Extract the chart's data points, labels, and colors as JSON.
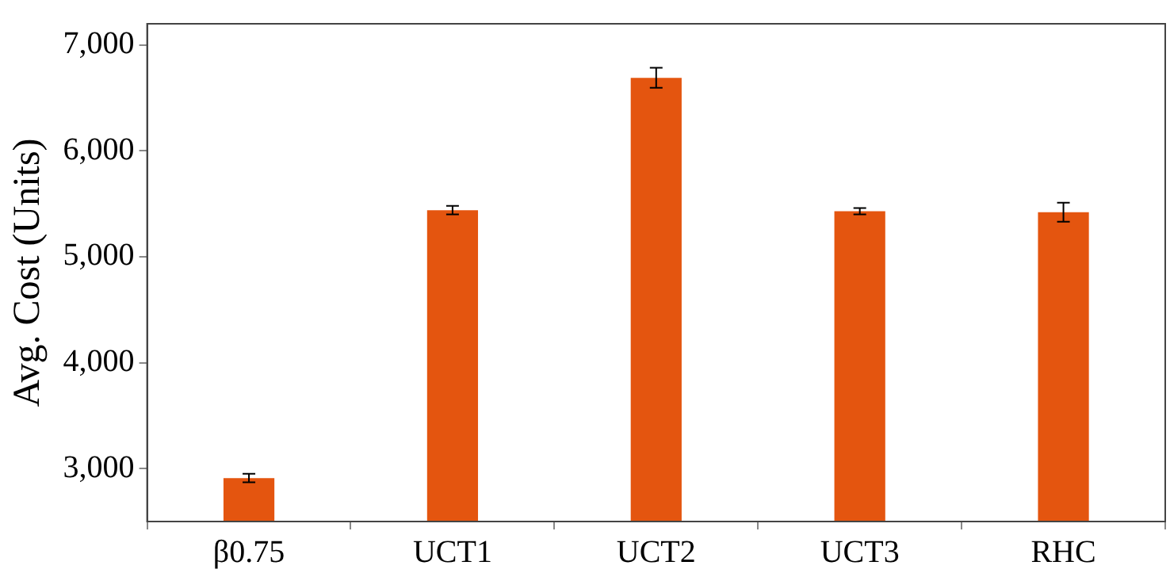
{
  "chart_data": {
    "type": "bar",
    "ylabel": "Avg. Cost (Units)",
    "categories": [
      "β0.75",
      "UCT1",
      "UCT2",
      "UCT3",
      "RHC"
    ],
    "values": [
      2910,
      5440,
      6690,
      5430,
      5420
    ],
    "errors": [
      40,
      40,
      95,
      30,
      90
    ],
    "color": "#e4550f",
    "ylim": [
      2500,
      7200
    ],
    "yticks": [
      {
        "value": 3000,
        "label": "3,000"
      },
      {
        "value": 4000,
        "label": "4,000"
      },
      {
        "value": 5000,
        "label": "5,000"
      },
      {
        "value": 6000,
        "label": "6,000"
      },
      {
        "value": 7000,
        "label": "7,000"
      }
    ],
    "grid": false,
    "legend": false
  }
}
